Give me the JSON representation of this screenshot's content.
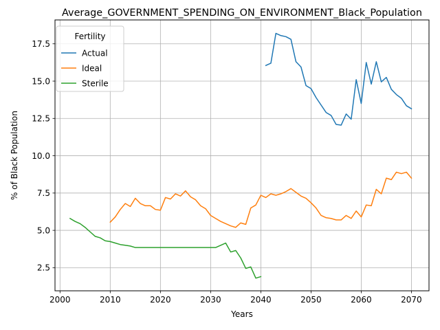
{
  "chart_data": {
    "type": "line",
    "title": "Average_GOVERNMENT_SPENDING_ON_ENVIRONMENT_Black_Population",
    "xlabel": "Years",
    "ylabel": "% of Black Population",
    "xlim": [
      1999,
      2073.5
    ],
    "ylim": [
      0.95,
      19.1
    ],
    "xticks": [
      2000,
      2010,
      2020,
      2030,
      2040,
      2050,
      2060,
      2070
    ],
    "xtick_labels": [
      "2000",
      "2010",
      "2020",
      "2030",
      "2040",
      "2050",
      "2060",
      "2070"
    ],
    "yticks": [
      2.5,
      5.0,
      7.5,
      10.0,
      12.5,
      15.0,
      17.5
    ],
    "ytick_labels": [
      "2.5",
      "5.0",
      "7.5",
      "10.0",
      "12.5",
      "15.0",
      "17.5"
    ],
    "grid": true,
    "legend": {
      "title": "Fertility",
      "placement": "upper-left"
    },
    "series": [
      {
        "name": "Actual",
        "color": "#1f77b4",
        "x": [
          2041,
          2042,
          2043,
          2044,
          2045,
          2046,
          2047,
          2048,
          2049,
          2050,
          2051,
          2052,
          2053,
          2054,
          2055,
          2056,
          2057,
          2058,
          2059,
          2060,
          2061,
          2062,
          2063,
          2064,
          2065,
          2066,
          2067,
          2068,
          2069,
          2070
        ],
        "y": [
          16.05,
          16.2,
          18.2,
          18.05,
          17.98,
          17.8,
          16.3,
          15.95,
          14.7,
          14.5,
          13.9,
          13.4,
          12.9,
          12.7,
          12.1,
          12.05,
          12.8,
          12.45,
          15.1,
          13.5,
          16.25,
          14.8,
          16.3,
          14.95,
          15.25,
          14.45,
          14.1,
          13.85,
          13.35,
          13.15
        ]
      },
      {
        "name": "Ideal",
        "color": "#ff7f0e",
        "x": [
          2010,
          2011,
          2012,
          2013,
          2014,
          2015,
          2016,
          2017,
          2018,
          2019,
          2020,
          2021,
          2022,
          2023,
          2024,
          2025,
          2026,
          2027,
          2028,
          2029,
          2030,
          2031,
          2032,
          2033,
          2034,
          2035,
          2036,
          2037,
          2038,
          2039,
          2040,
          2041,
          2042,
          2043,
          2044,
          2045,
          2046,
          2047,
          2048,
          2049,
          2050,
          2051,
          2052,
          2053,
          2054,
          2055,
          2056,
          2057,
          2058,
          2059,
          2060,
          2061,
          2062,
          2063,
          2064,
          2065,
          2066,
          2067,
          2068,
          2069,
          2070
        ],
        "y": [
          5.55,
          5.9,
          6.4,
          6.8,
          6.6,
          7.15,
          6.8,
          6.65,
          6.65,
          6.4,
          6.35,
          7.2,
          7.1,
          7.45,
          7.3,
          7.65,
          7.25,
          7.05,
          6.65,
          6.45,
          6.0,
          5.8,
          5.6,
          5.45,
          5.3,
          5.2,
          5.5,
          5.4,
          6.5,
          6.7,
          7.35,
          7.2,
          7.45,
          7.35,
          7.45,
          7.6,
          7.8,
          7.55,
          7.3,
          7.15,
          6.85,
          6.5,
          6.0,
          5.85,
          5.8,
          5.7,
          5.7,
          6.0,
          5.8,
          6.3,
          5.9,
          6.7,
          6.65,
          7.75,
          7.45,
          8.5,
          8.4,
          8.9,
          8.8,
          8.9,
          8.5
        ]
      },
      {
        "name": "Sterile",
        "color": "#2ca02c",
        "x": [
          2002,
          2003,
          2004,
          2005,
          2006,
          2007,
          2008,
          2009,
          2010,
          2011,
          2012,
          2013,
          2014,
          2015,
          2016,
          2017,
          2018,
          2019,
          2020,
          2021,
          2022,
          2023,
          2024,
          2025,
          2026,
          2027,
          2028,
          2029,
          2030,
          2031,
          2032,
          2033,
          2034,
          2035,
          2036,
          2037,
          2038,
          2039,
          2040
        ],
        "y": [
          5.8,
          5.6,
          5.45,
          5.2,
          4.9,
          4.6,
          4.5,
          4.3,
          4.25,
          4.15,
          4.05,
          4.0,
          3.95,
          3.85,
          3.85,
          3.85,
          3.85,
          3.85,
          3.85,
          3.85,
          3.85,
          3.85,
          3.85,
          3.85,
          3.85,
          3.85,
          3.85,
          3.85,
          3.85,
          3.85,
          4.0,
          4.15,
          3.55,
          3.65,
          3.15,
          2.45,
          2.55,
          1.8,
          1.9
        ]
      }
    ]
  }
}
